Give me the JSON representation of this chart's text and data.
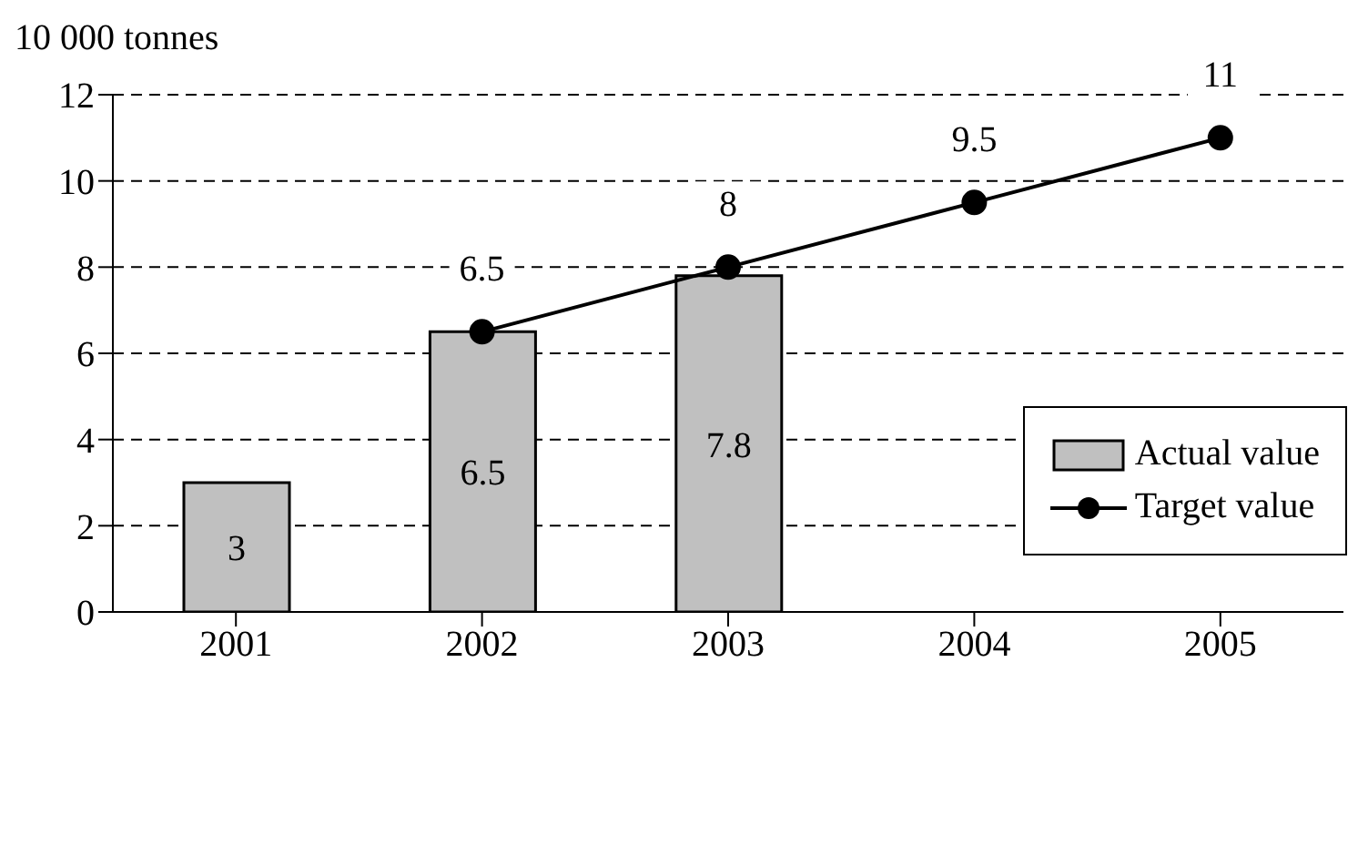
{
  "chart_data": {
    "type": "bar",
    "ylabel": "10 000 tonnes",
    "categories": [
      "2001",
      "2002",
      "2003",
      "2004",
      "2005"
    ],
    "series": [
      {
        "name": "Actual value",
        "color": "#c0c0c0",
        "values": [
          3,
          6.5,
          7.8,
          null,
          null
        ]
      },
      {
        "name": "Target value",
        "type": "line",
        "color": "#000000",
        "values": [
          null,
          6.5,
          8,
          9.5,
          11
        ]
      }
    ],
    "ylim": [
      0,
      12
    ],
    "yticks": [
      0,
      2,
      4,
      6,
      8,
      10,
      12
    ],
    "grid": "y",
    "legend": "right",
    "marker": "circle",
    "line_style": "solid",
    "data_labels": true
  }
}
